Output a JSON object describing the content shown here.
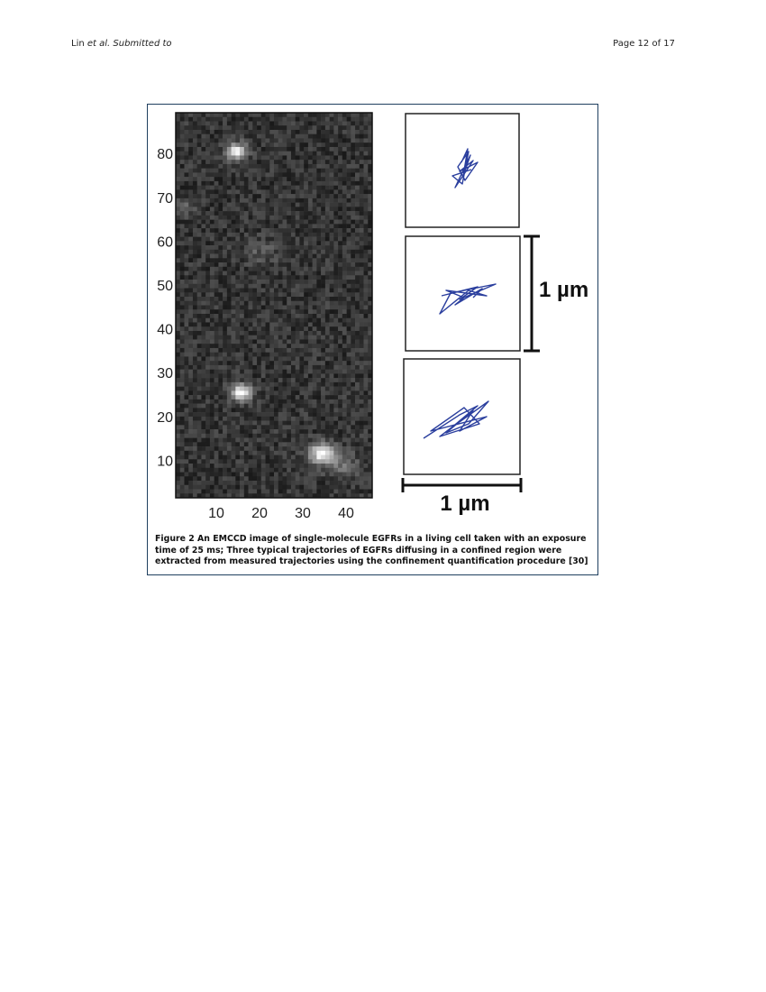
{
  "header": {
    "author": "Lin",
    "journal": "et al. Submitted to",
    "page": "Page 12 of 17"
  },
  "figure": {
    "image": {
      "xticks": [
        10,
        20,
        30,
        40
      ],
      "yticks": [
        10,
        20,
        30,
        40,
        50,
        60,
        70,
        80
      ]
    },
    "scale_vertical": "1 µm",
    "scale_horizontal": "1 µm",
    "caption": {
      "label": "Figure 2",
      "text": "An EMCCD image of single-molecule EGFRs in a living cell taken with an exposure time of 25 ms; Three typical trajectories of EGFRs diffusing in a confined region were extracted from measured trajectories using the confinement quantification procedure [30]"
    }
  }
}
